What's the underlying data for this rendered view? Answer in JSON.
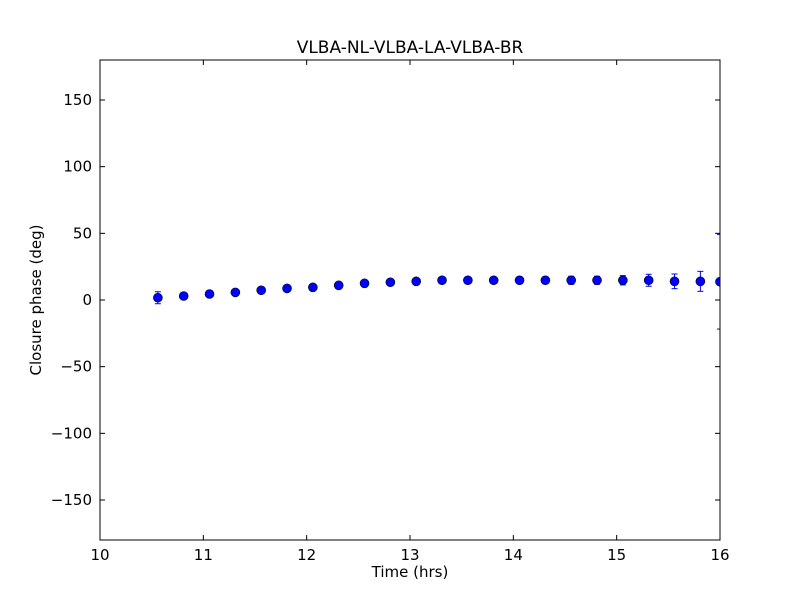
{
  "chart_data": {
    "type": "scatter",
    "title": "VLBA-NL-VLBA-LA-VLBA-BR",
    "xlabel": "Time (hrs)",
    "ylabel": "Closure phase (deg)",
    "xlim": [
      10,
      16
    ],
    "ylim": [
      -180,
      180
    ],
    "xticks": [
      10,
      11,
      12,
      13,
      14,
      15,
      16
    ],
    "xtick_labels": [
      "10",
      "11",
      "12",
      "13",
      "14",
      "15",
      "16"
    ],
    "yticks": [
      -150,
      -100,
      -50,
      0,
      50,
      100,
      150
    ],
    "ytick_labels": [
      "−150",
      "−100",
      "−50",
      "0",
      "50",
      "100",
      "150"
    ],
    "grid": false,
    "marker_color": "#0000ff",
    "series": [
      {
        "x": [
          10.56,
          10.81,
          11.06,
          11.31,
          11.56,
          11.81,
          12.06,
          12.31,
          12.56,
          12.81,
          13.06,
          13.31,
          13.56,
          13.81,
          14.06,
          14.31,
          14.56,
          14.81,
          15.06,
          15.31,
          15.56,
          15.81,
          16.0
        ],
        "y": [
          1.7,
          3.0,
          4.5,
          5.7,
          7.3,
          8.7,
          9.5,
          11.0,
          12.5,
          13.3,
          14.0,
          14.8,
          14.8,
          14.8,
          14.8,
          14.8,
          14.8,
          14.8,
          14.8,
          14.8,
          14.0,
          14.0,
          13.7
        ],
        "yerr": [
          4.5,
          1.5,
          1.5,
          1.5,
          1.5,
          1.5,
          1.5,
          1.5,
          1.5,
          1.5,
          1.5,
          1.5,
          2,
          2,
          2.5,
          2.5,
          3,
          3,
          3.5,
          4.5,
          5.5,
          7.5,
          35.5
        ]
      }
    ]
  }
}
